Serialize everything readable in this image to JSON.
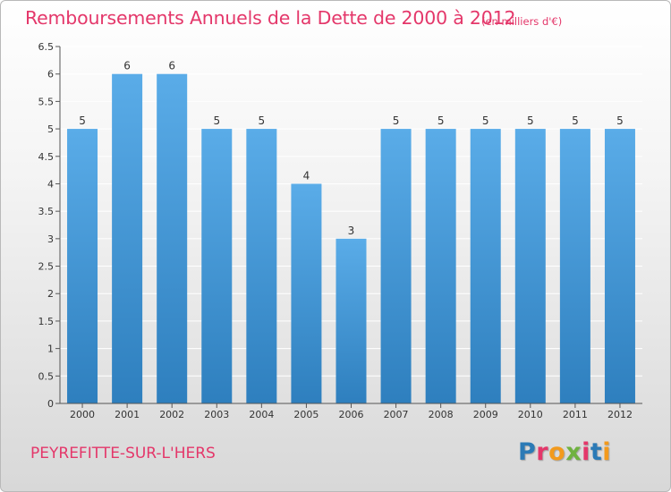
{
  "header": {
    "title": "Remboursements Annuels de la Dette de 2000 à 2012",
    "subtitle": "(en milliers d'€)"
  },
  "footer": {
    "city": "PEYREFITTE-SUR-L'HERS",
    "logo_letters": [
      "P",
      "r",
      "o",
      "x",
      "i",
      "t",
      "i"
    ],
    "logo_colors": [
      "#2b7ab6",
      "#e4376a",
      "#f39a1c",
      "#6fb23f",
      "#e4376a",
      "#2b7ab6",
      "#f39a1c"
    ]
  },
  "colors": {
    "bar": "#5aace8",
    "bar_dark": "#2e7fbe",
    "accent": "#e4376a",
    "grid": "#ffffff",
    "axis": "#555555"
  },
  "chart_data": {
    "type": "bar",
    "title": "Remboursements Annuels de la Dette de 2000 à 2012",
    "subtitle": "(en milliers d'€)",
    "categories": [
      "2000",
      "2001",
      "2002",
      "2003",
      "2004",
      "2005",
      "2006",
      "2007",
      "2008",
      "2009",
      "2010",
      "2011",
      "2012"
    ],
    "values": [
      5,
      6,
      6,
      5,
      5,
      4,
      3,
      5,
      5,
      5,
      5,
      5,
      5
    ],
    "data_labels": [
      "5",
      "6",
      "6",
      "5",
      "5",
      "4",
      "3",
      "5",
      "5",
      "5",
      "5",
      "5",
      "5"
    ],
    "ylim": [
      0,
      6.5
    ],
    "yticks": [
      "0",
      "0.5",
      "1",
      "1.5",
      "2",
      "2.5",
      "3",
      "3.5",
      "4",
      "4.5",
      "5",
      "5.5",
      "6",
      "6.5"
    ],
    "ytick_values": [
      0,
      0.5,
      1,
      1.5,
      2,
      2.5,
      3,
      3.5,
      4,
      4.5,
      5,
      5.5,
      6,
      6.5
    ],
    "grid": true,
    "legend": "none"
  }
}
